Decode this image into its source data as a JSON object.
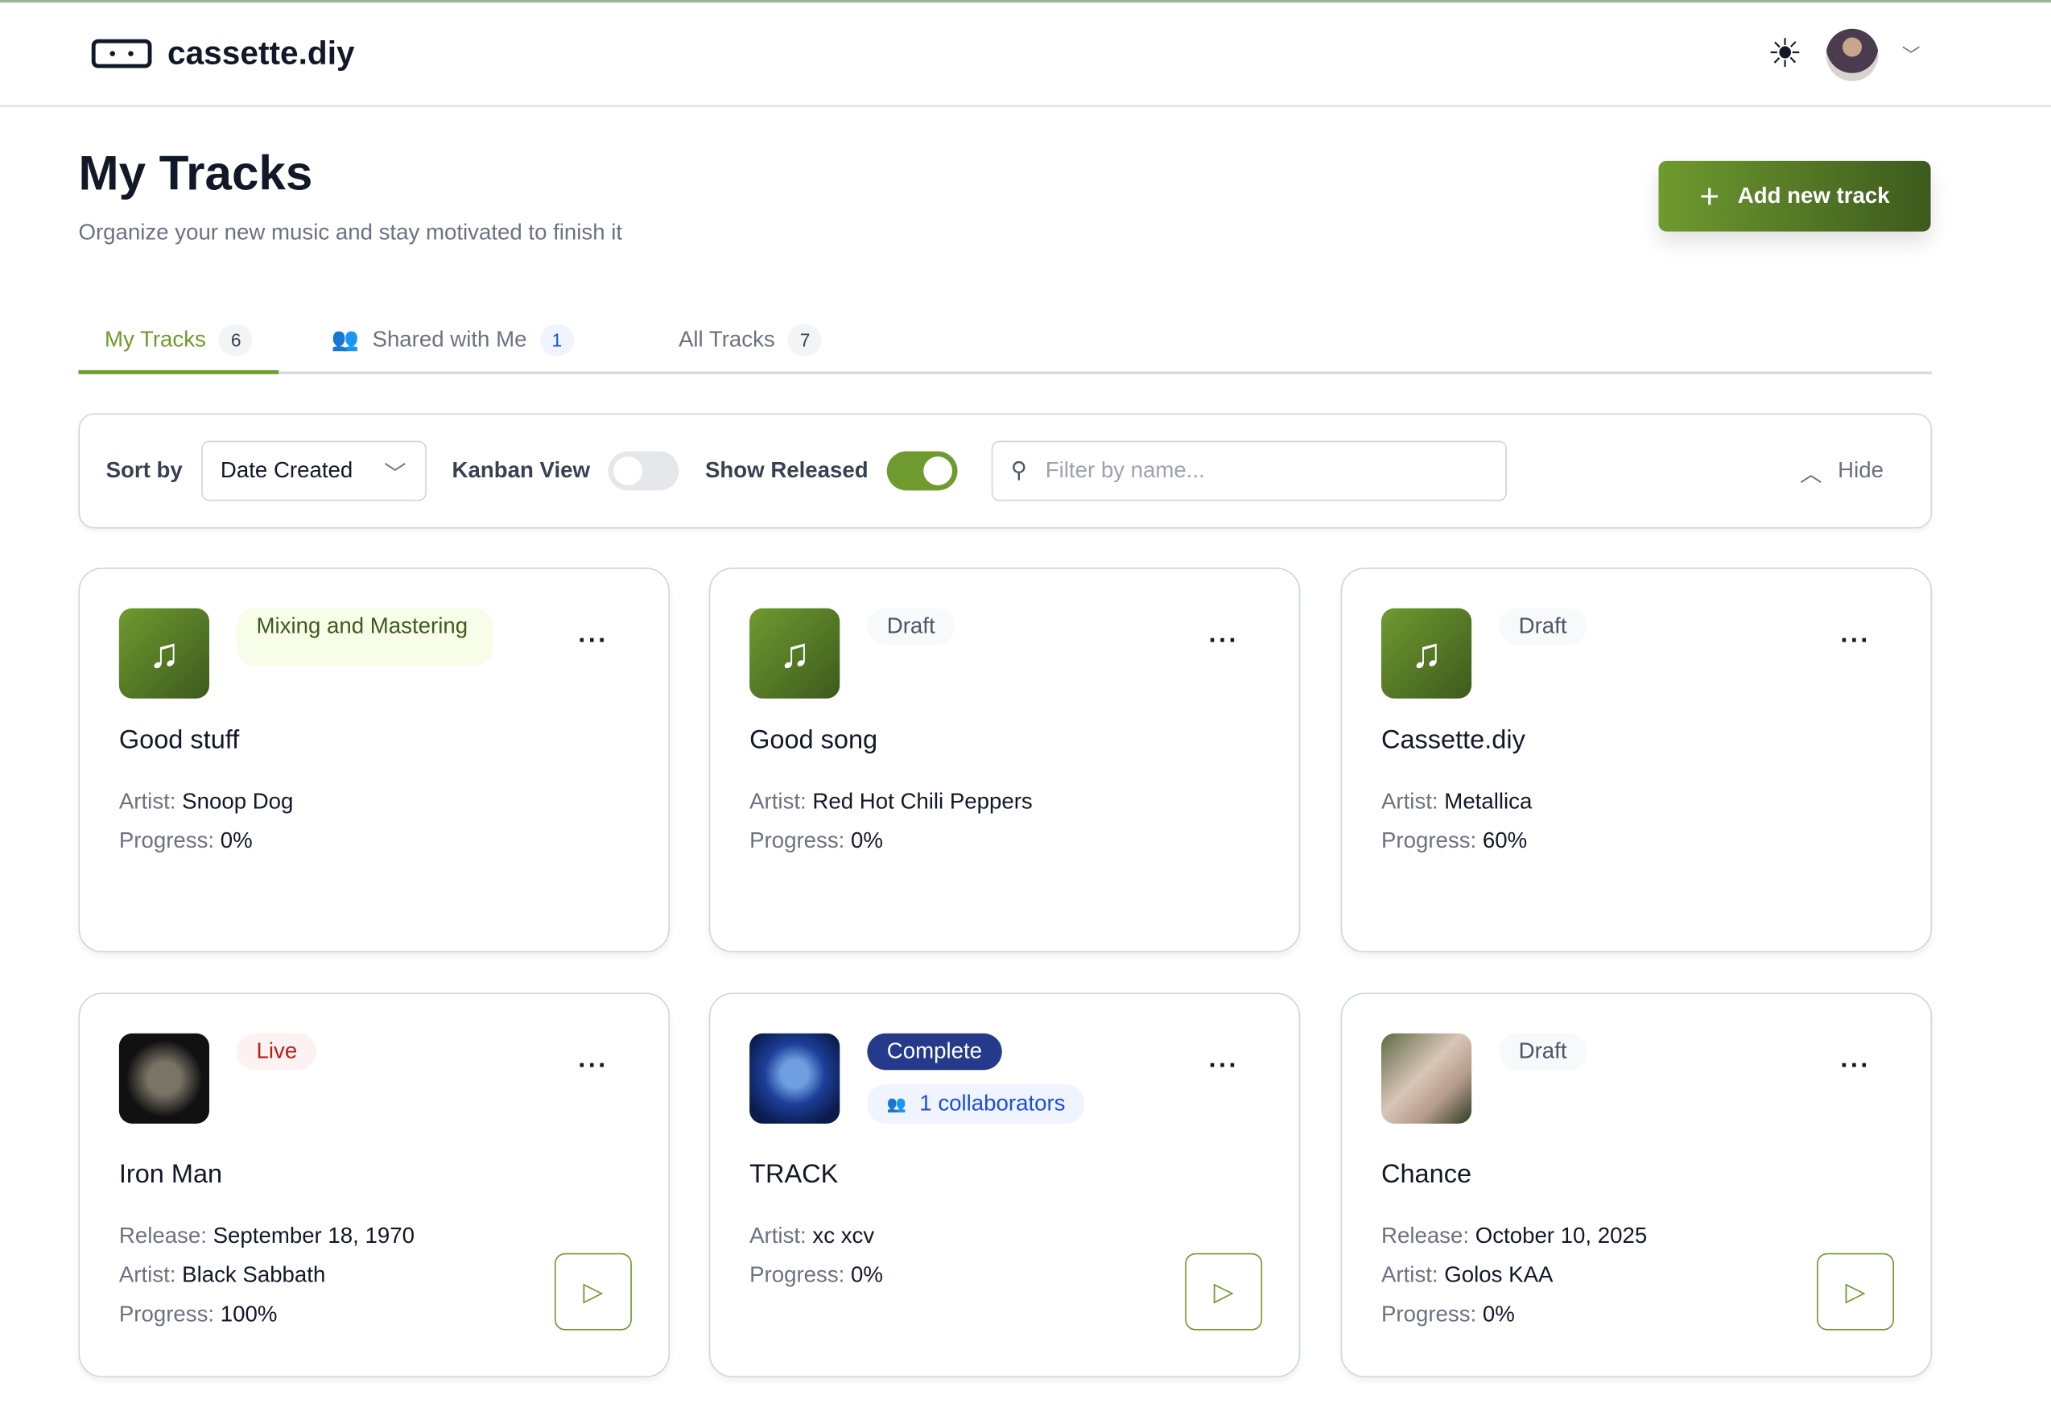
{
  "header": {
    "brand": "cassette.diy",
    "theme_icon": "sun-icon"
  },
  "page": {
    "title": "My Tracks",
    "subtitle": "Organize your new music and stay motivated to finish it",
    "add_button": "Add new track"
  },
  "tabs": [
    {
      "label": "My Tracks",
      "count": "6",
      "active": true
    },
    {
      "label": "Shared with Me",
      "count": "1"
    },
    {
      "label": "All Tracks",
      "count": "7"
    }
  ],
  "filters": {
    "sort_label": "Sort by",
    "sort_value": "Date Created",
    "kanban_label": "Kanban View",
    "kanban_on": false,
    "released_label": "Show Released",
    "released_on": true,
    "search_placeholder": "Filter by name...",
    "hide_label": "Hide"
  },
  "labels": {
    "artist": "Artist:",
    "progress": "Progress:",
    "release": "Release:"
  },
  "tracks": [
    {
      "title": "Good stuff",
      "status": "Mixing and Mastering",
      "artist": "Snoop Dog",
      "progress": "0%"
    },
    {
      "title": "Good song",
      "status": "Draft",
      "artist": "Red Hot Chili Peppers",
      "progress": "0%"
    },
    {
      "title": "Cassette.diy",
      "status": "Draft",
      "artist": "Metallica",
      "progress": "60%"
    },
    {
      "title": "Iron Man",
      "status": "Live",
      "release": "September 18, 1970",
      "artist": "Black Sabbath",
      "progress": "100%"
    },
    {
      "title": "TRACK",
      "status": "Complete",
      "collaborators": "1 collaborators",
      "artist": "xc xcv",
      "progress": "0%"
    },
    {
      "title": "Chance",
      "status": "Draft",
      "release": "October 10, 2025",
      "artist": "Golos KAA",
      "progress": "0%"
    }
  ],
  "colors": {
    "accent": "#6f9a2f",
    "accent_dark": "#3d5a1d",
    "complete": "#253a8a"
  }
}
